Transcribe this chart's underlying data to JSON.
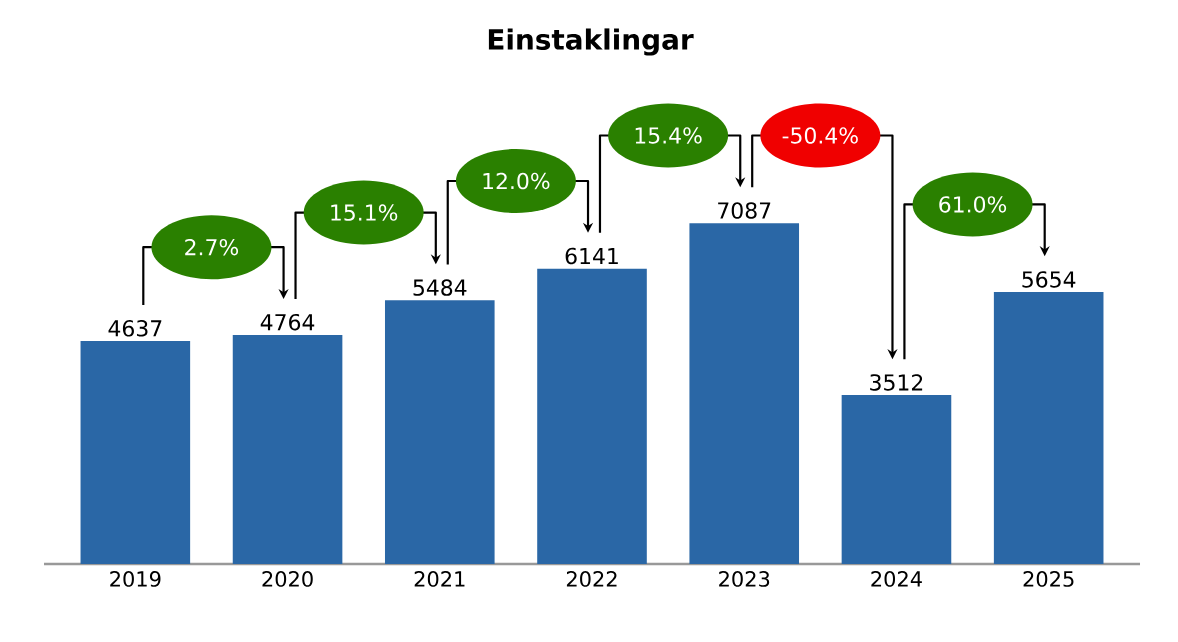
{
  "chart_data": {
    "type": "bar",
    "title": "Einstaklingar",
    "categories": [
      "2019",
      "2020",
      "2021",
      "2022",
      "2023",
      "2024",
      "2025"
    ],
    "values": [
      4637,
      4764,
      5484,
      6141,
      7087,
      3512,
      5654
    ],
    "color": "#2a67a6",
    "data_labels": true,
    "annotations": [
      "2.7%",
      "15.1%",
      "12.0%",
      "15.4%",
      "-50.4%",
      "61.0%"
    ]
  }
}
